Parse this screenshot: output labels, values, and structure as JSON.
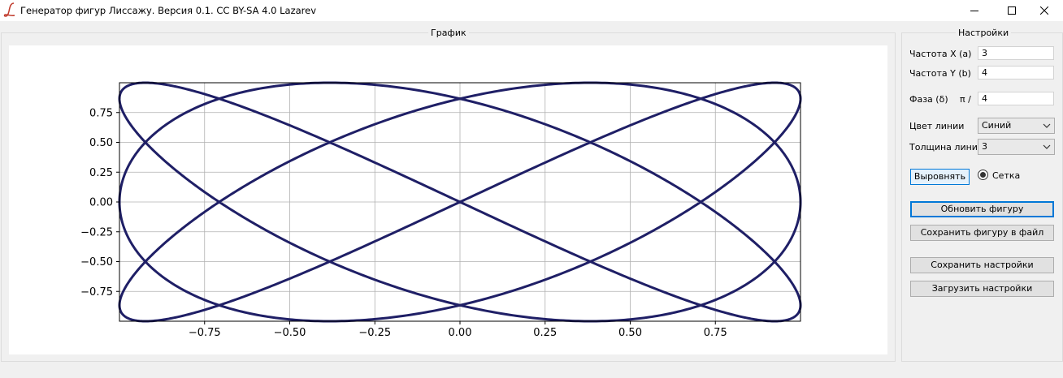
{
  "window": {
    "title": "Генератор фигур Лиссажу. Версия 0.1. CC BY-SA 4.0 Lazarev",
    "icon": "script-l-icon"
  },
  "plot_group": {
    "title": "График"
  },
  "settings": {
    "title": "Настройки",
    "freq_x": {
      "label": "Частота X (a)",
      "value": "3"
    },
    "freq_y": {
      "label": "Частота Y (b)",
      "value": "4"
    },
    "phase": {
      "label": "Фаза (δ)",
      "prefix": "π /",
      "value": "4"
    },
    "line_color": {
      "label": "Цвет линии",
      "selected": "Синий"
    },
    "line_width": {
      "label": "Толщина линии",
      "selected": "3"
    },
    "align_button": "Выровнять",
    "grid_toggle": {
      "label": "Сетка",
      "checked": true
    },
    "update_button": "Обновить фигуру",
    "save_figure_button": "Сохранить фигуру в файл",
    "save_settings_button": "Сохранить настройки",
    "load_settings_button": "Загрузить настройки"
  },
  "chart_data": {
    "type": "line",
    "equation": {
      "a": 3,
      "b": 4,
      "delta_divisor": 4
    },
    "xlim": [
      -1,
      1
    ],
    "ylim": [
      -1,
      1
    ],
    "xticks": [
      -0.75,
      -0.5,
      -0.25,
      0.0,
      0.25,
      0.5,
      0.75
    ],
    "yticks": [
      -0.75,
      -0.5,
      -0.25,
      0.0,
      0.25,
      0.5,
      0.75
    ],
    "xtick_labels": [
      "−0.75",
      "−0.50",
      "−0.25",
      "0.00",
      "0.25",
      "0.50",
      "0.75"
    ],
    "ytick_labels": [
      "−0.75",
      "−0.50",
      "−0.25",
      "0.00",
      "0.25",
      "0.50",
      "0.75"
    ],
    "grid": true,
    "line_color": "#1f1f66",
    "line_width": 3
  }
}
